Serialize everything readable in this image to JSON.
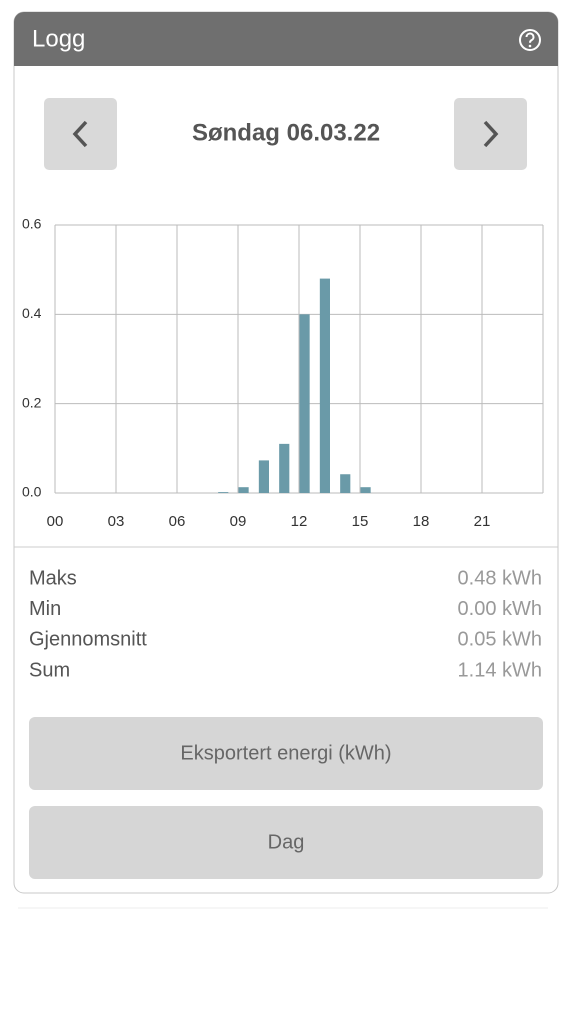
{
  "header": {
    "title": "Logg"
  },
  "nav": {
    "date": "Søndag 06.03.22"
  },
  "chart_data": {
    "type": "bar",
    "color": "#6a9aa8",
    "grid": true,
    "categories": [
      "00",
      null,
      null,
      "03",
      null,
      null,
      "06",
      null,
      null,
      "09",
      null,
      null,
      "12",
      null,
      null,
      "15",
      null,
      null,
      "18",
      null,
      null,
      "21",
      null,
      null
    ],
    "values": [
      0,
      0,
      0,
      0,
      0,
      0,
      0,
      0,
      0.002,
      0.013,
      0.073,
      0.11,
      0.4,
      0.48,
      0.042,
      0.013,
      0,
      0,
      0,
      0,
      0,
      0,
      0,
      0
    ],
    "ylim": [
      0,
      0.6
    ],
    "yticks": [
      {
        "value": 0,
        "label": "0.0"
      },
      0.2,
      0.4,
      0.6
    ]
  },
  "stats": [
    {
      "label": "Maks",
      "value": "0.48 kWh"
    },
    {
      "label": "Min",
      "value": "0.00 kWh"
    },
    {
      "label": "Gjennomsnitt",
      "value": "0.05 kWh"
    },
    {
      "label": "Sum",
      "value": "1.14 kWh"
    }
  ],
  "buttons": [
    "Eksportert energi (kWh)",
    "Dag"
  ]
}
